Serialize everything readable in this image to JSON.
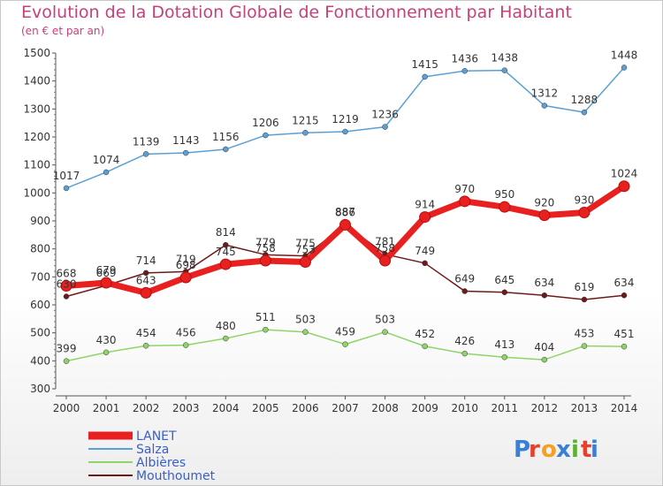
{
  "header": {
    "title": "Evolution de la Dotation Globale de Fonctionnement par Habitant",
    "subtitle": "(en € et par an)"
  },
  "brand": {
    "letters": [
      "P",
      "r",
      "o",
      "x",
      "i",
      "t",
      "i"
    ],
    "colors": [
      "#3a7fd6",
      "#e8402a",
      "#f4a020",
      "#3a7fd6",
      "#5ab030",
      "#e8402a",
      "#3a7fd6"
    ]
  },
  "chart_data": {
    "type": "line",
    "title": "Evolution de la Dotation Globale de Fonctionnement par Habitant",
    "subtitle": "(en € et par an)",
    "x": [
      "2000",
      "2001",
      "2002",
      "2003",
      "2004",
      "2005",
      "2006",
      "2007",
      "2008",
      "2009",
      "2010",
      "2011",
      "2012",
      "2013",
      "2014"
    ],
    "ylim": [
      300,
      1500
    ],
    "yticks": [
      300,
      400,
      500,
      600,
      700,
      800,
      900,
      1000,
      1100,
      1200,
      1300,
      1400,
      1500
    ],
    "grid": false,
    "legend": "bottom-left",
    "series": [
      {
        "name": "Mouthoumet",
        "color": "#6e1a1a",
        "values": [
          630,
          669,
          714,
          719,
          814,
          779,
          775,
          887,
          781,
          749,
          649,
          645,
          634,
          619,
          634
        ]
      },
      {
        "name": "Albières",
        "color": "#8fd468",
        "values": [
          399,
          430,
          454,
          456,
          480,
          511,
          503,
          459,
          503,
          452,
          426,
          413,
          404,
          453,
          451
        ]
      },
      {
        "name": "Salza",
        "color": "#5a9fd6",
        "values": [
          1017,
          1074,
          1139,
          1143,
          1156,
          1206,
          1215,
          1219,
          1236,
          1415,
          1436,
          1438,
          1312,
          1288,
          1448
        ]
      },
      {
        "name": "LANET",
        "color": "#e82020",
        "values": [
          668,
          679,
          643,
          698,
          745,
          758,
          753,
          886,
          758,
          914,
          970,
          950,
          920,
          930,
          1024
        ]
      }
    ]
  }
}
